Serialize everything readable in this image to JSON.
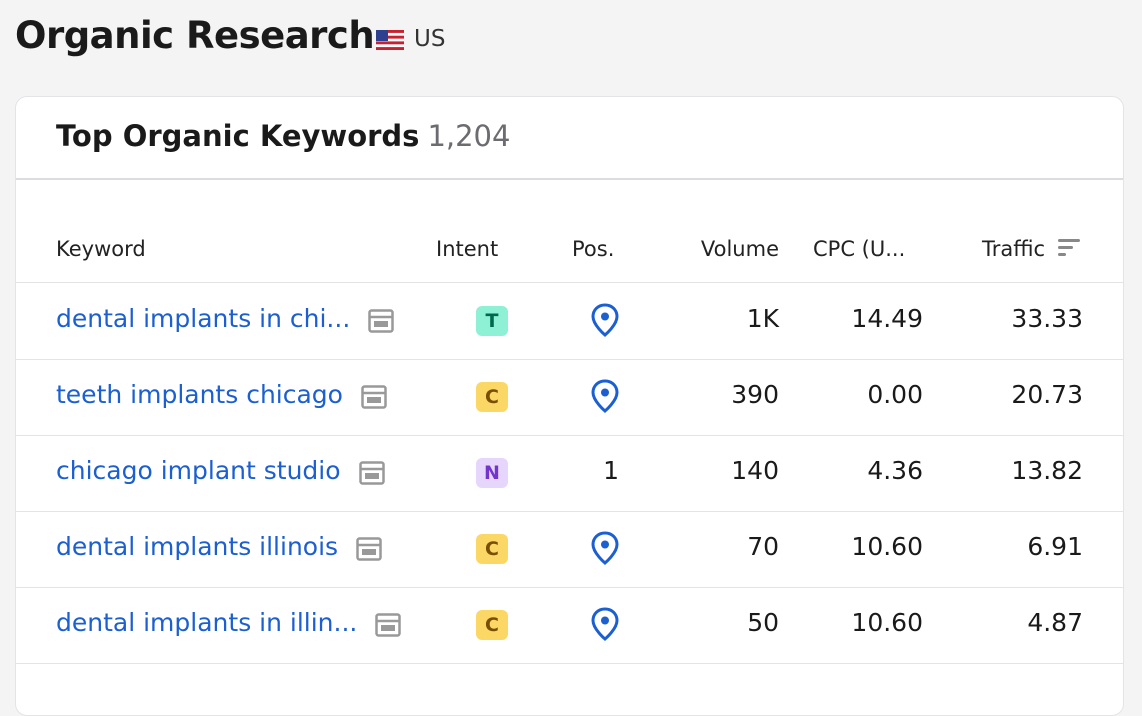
{
  "header": {
    "title": "Organic Research",
    "country": "US"
  },
  "card": {
    "title": "Top Organic Keywords",
    "count": "1,204"
  },
  "table": {
    "columns": [
      "Keyword",
      "Intent",
      "Pos.",
      "Volume",
      "CPC (U...",
      "Traffic"
    ],
    "rows": [
      {
        "keyword": "dental implants in chi...",
        "intent": "T",
        "volume": "1K",
        "cpc": "14.49",
        "traffic": "33.33"
      },
      {
        "keyword": "teeth implants chicago",
        "intent": "C",
        "volume": "390",
        "cpc": "0.00",
        "traffic": "20.73"
      },
      {
        "keyword": "chicago implant studio",
        "intent": "N",
        "pos": "1",
        "volume": "140",
        "cpc": "4.36",
        "traffic": "13.82"
      },
      {
        "keyword": "dental implants illinois",
        "intent": "C",
        "volume": "70",
        "cpc": "10.60",
        "traffic": "6.91"
      },
      {
        "keyword": "dental implants in illin...",
        "intent": "C",
        "volume": "50",
        "cpc": "10.60",
        "traffic": "4.87"
      }
    ]
  }
}
